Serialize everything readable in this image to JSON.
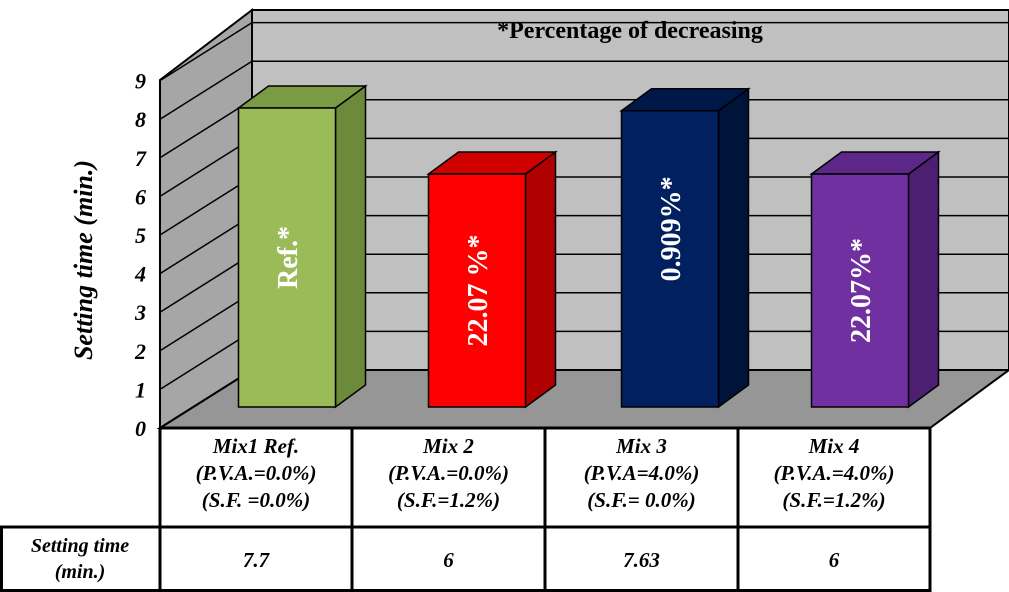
{
  "chart_data": {
    "type": "bar",
    "title": "*Percentage of decreasing",
    "ylabel": "Setting time (min.)",
    "xlabel": "",
    "ylim": [
      0,
      9
    ],
    "yticks": [
      "0",
      "1",
      "2",
      "3",
      "4",
      "5",
      "6",
      "7",
      "8",
      "9"
    ],
    "grid": true,
    "categories": [
      {
        "lines": [
          "Mix1 Ref.",
          "(P.V.A.=0.0%)",
          "(S.F. =0.0%)"
        ]
      },
      {
        "lines": [
          "Mix 2",
          "(P.V.A.=0.0%)",
          "(S.F.=1.2%)"
        ]
      },
      {
        "lines": [
          "Mix 3",
          "(P.V.A=4.0%)",
          "(S.F.= 0.0%)"
        ]
      },
      {
        "lines": [
          "Mix 4",
          "(P.V.A.=4.0%)",
          "(S.F.=1.2%)"
        ]
      }
    ],
    "values": [
      7.7,
      6,
      7.63,
      6
    ],
    "bar_labels": [
      "Ref.*",
      "22.07 %*",
      "0.909%*",
      "22.07%*"
    ],
    "colors": {
      "bars": [
        "#9bbb59",
        "#ff0000",
        "#002060",
        "#7030a0"
      ],
      "bar_sides": [
        "#6b8a3a",
        "#b00000",
        "#001338",
        "#4d1f73"
      ],
      "bar_tops": [
        "#7a9a44",
        "#d00000",
        "#001848",
        "#5c2788"
      ],
      "wall": "#c0c0c0",
      "side_wall": "#a6a6a6",
      "floor": "#969696"
    },
    "table": {
      "row_header": [
        "Setting time",
        "(min.)"
      ],
      "cells": [
        "7.7",
        "6",
        "7.63",
        "6"
      ]
    }
  }
}
